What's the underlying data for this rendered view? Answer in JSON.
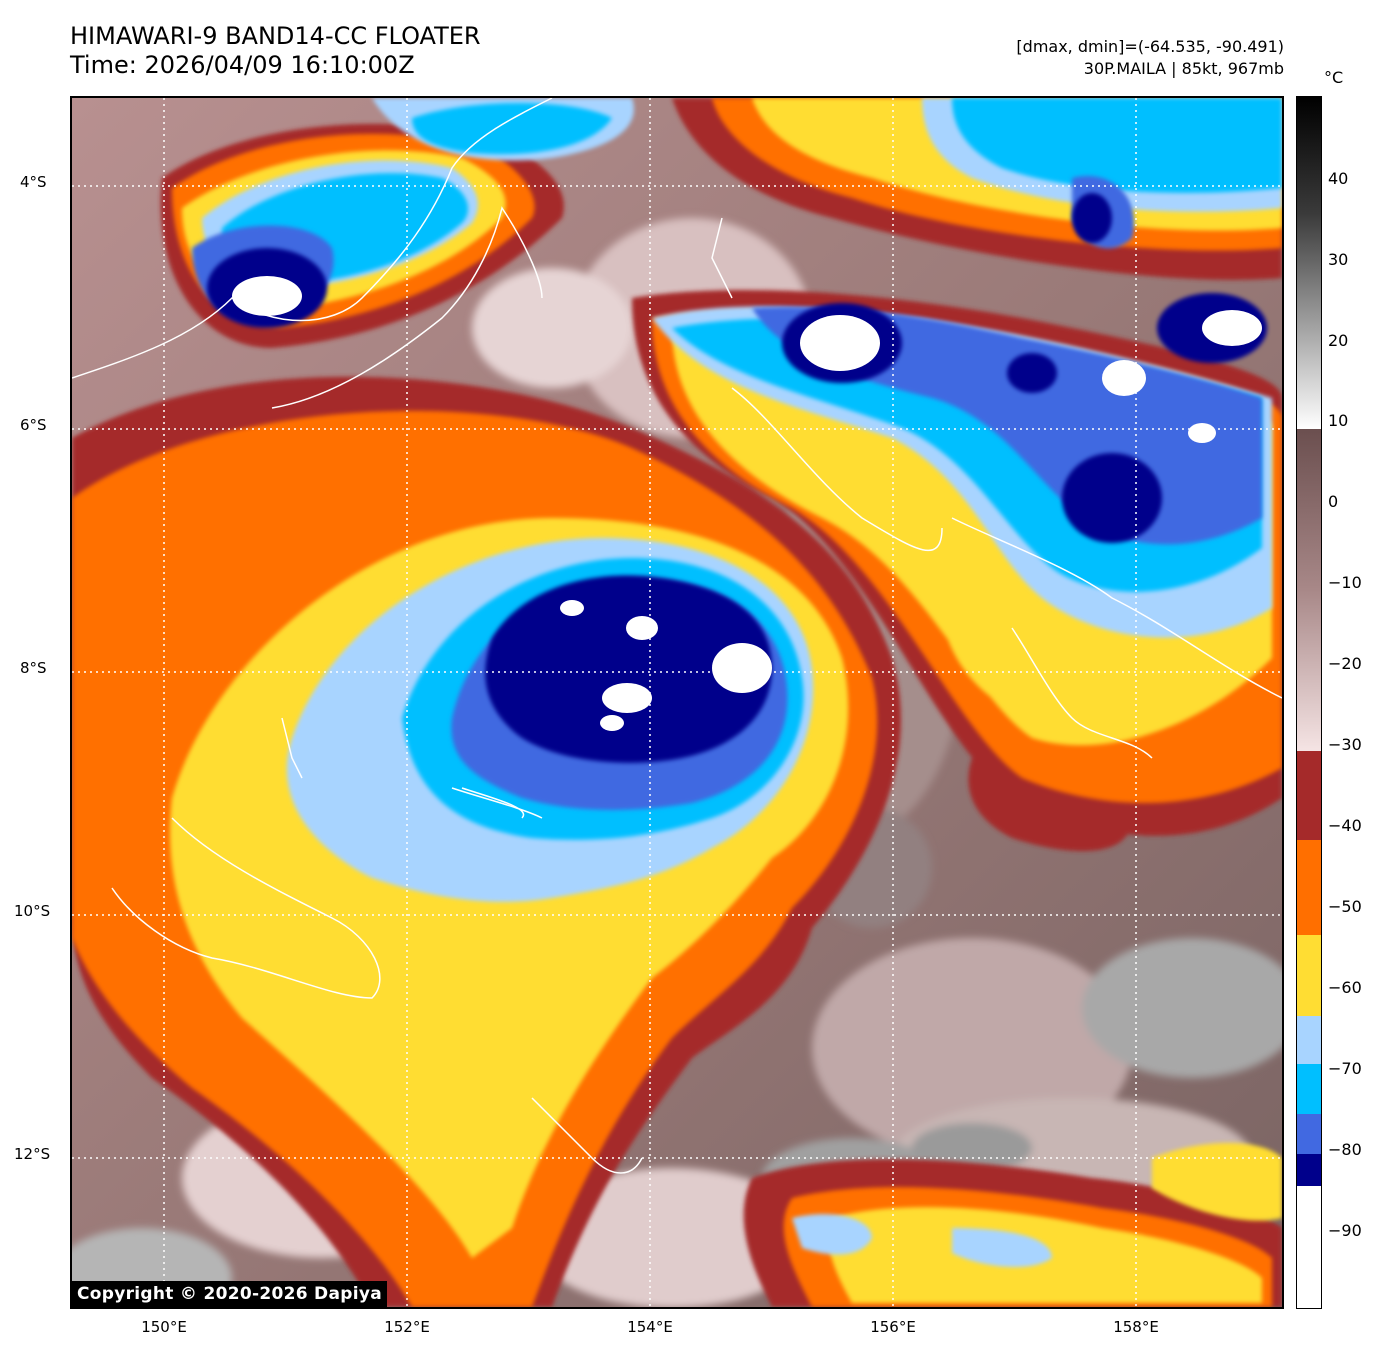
{
  "header": {
    "title_line1": "HIMAWARI-9 BAND14-CC FLOATER",
    "title_line2": "Time: 2026/04/09 16:10:00Z",
    "info_line1": "[dmax, dmin]=(-64.535, -90.491)",
    "info_line2": "30P.MAILA | 85kt, 967mb"
  },
  "map": {
    "lat_labels": [
      "4°S",
      "6°S",
      "8°S",
      "10°S",
      "12°S"
    ],
    "lon_labels": [
      "150°E",
      "152°E",
      "154°E",
      "156°E",
      "158°E"
    ],
    "lat_range": [
      -13.0,
      -3.3
    ],
    "lon_range": [
      149.2,
      159.2
    ],
    "gridlines": "dotted-white"
  },
  "colorbar": {
    "unit": "°C",
    "ticks": [
      "40",
      "30",
      "20",
      "10",
      "0",
      "−10",
      "−20",
      "−30",
      "−40",
      "−50",
      "−60",
      "−70",
      "−80",
      "−90"
    ],
    "range": [
      -100,
      50
    ],
    "colors": {
      "below_-85": "#ffffff",
      "-85_to_-80": "#00008b",
      "-80_to_-75": "#4169e1",
      "-75_to_-70": "#00bfff",
      "-70_to_-65": "#a8d4ff",
      "-65_to_-60": "#ffdd33",
      "-60_to_-50": "#ff6f00",
      "-50_to_-40": "#a52a2a",
      "-40_to_10": "gradient-white-brown",
      "above_10": "gradient-white-black"
    }
  },
  "copyright": "Copyright © 2020-2026 Dapiya"
}
